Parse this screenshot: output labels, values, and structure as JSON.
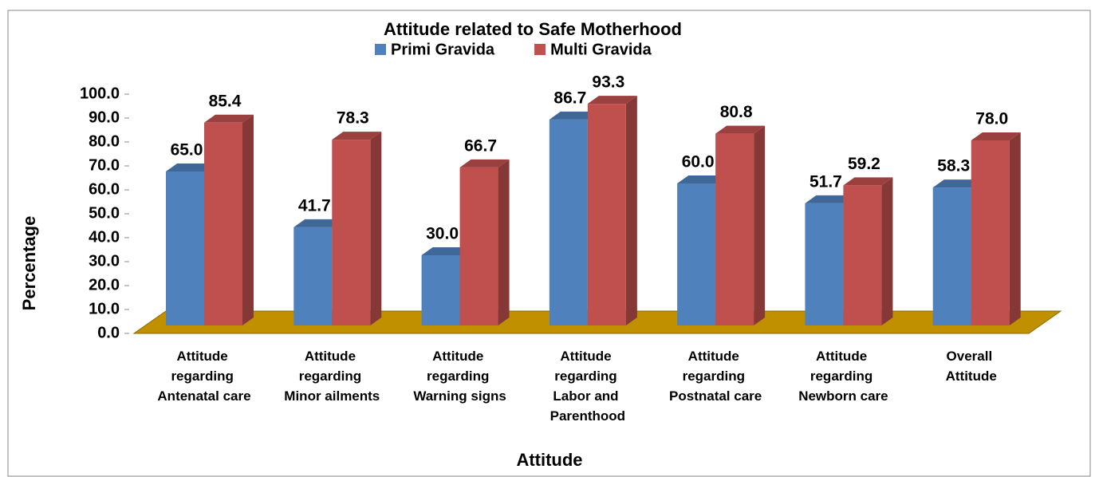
{
  "chart_data": {
    "type": "bar3d",
    "title": "Attitude related to Safe Motherhood",
    "xlabel": "Attitude",
    "ylabel": "Percentage",
    "categories": [
      "Attitude regarding Antenatal care",
      "Attitude regarding Minor ailments",
      "Attitude regarding Warning signs",
      "Attitude regarding Labor and Parenthood",
      "Attitude regarding Postnatal care",
      "Attitude regarding Newborn care",
      "Overall Attitude"
    ],
    "series": [
      {
        "name": "Primi Gravida",
        "color": "#4f81bd",
        "values": [
          65.0,
          41.7,
          30.0,
          86.7,
          60.0,
          51.7,
          58.3
        ],
        "value_labels": [
          "65.0",
          "41.7",
          "30.0",
          "86.7",
          "60.0",
          "51.7",
          "58.3"
        ]
      },
      {
        "name": "Multi Gravida",
        "color": "#c0504d",
        "values": [
          85.4,
          78.3,
          66.7,
          93.3,
          80.8,
          59.2,
          78.0
        ],
        "value_labels": [
          "85.4",
          "78.3",
          "66.7",
          "93.3",
          "80.8",
          "59.2",
          "78.0"
        ]
      }
    ],
    "ylim": [
      0,
      100
    ],
    "yticks": [
      {
        "value": 0,
        "label": "0.0"
      },
      {
        "value": 10,
        "label": "10.0"
      },
      {
        "value": 20,
        "label": "20.0"
      },
      {
        "value": 30,
        "label": "30.0"
      },
      {
        "value": 40,
        "label": "40.0"
      },
      {
        "value": 50,
        "label": "50.0"
      },
      {
        "value": 60,
        "label": "60.0"
      },
      {
        "value": 70,
        "label": "70.0"
      },
      {
        "value": 80,
        "label": "80.0"
      },
      {
        "value": 90,
        "label": "90.0"
      },
      {
        "value": 100,
        "label": "100.0"
      }
    ],
    "floor_color": "#c09000",
    "legend": "top"
  }
}
